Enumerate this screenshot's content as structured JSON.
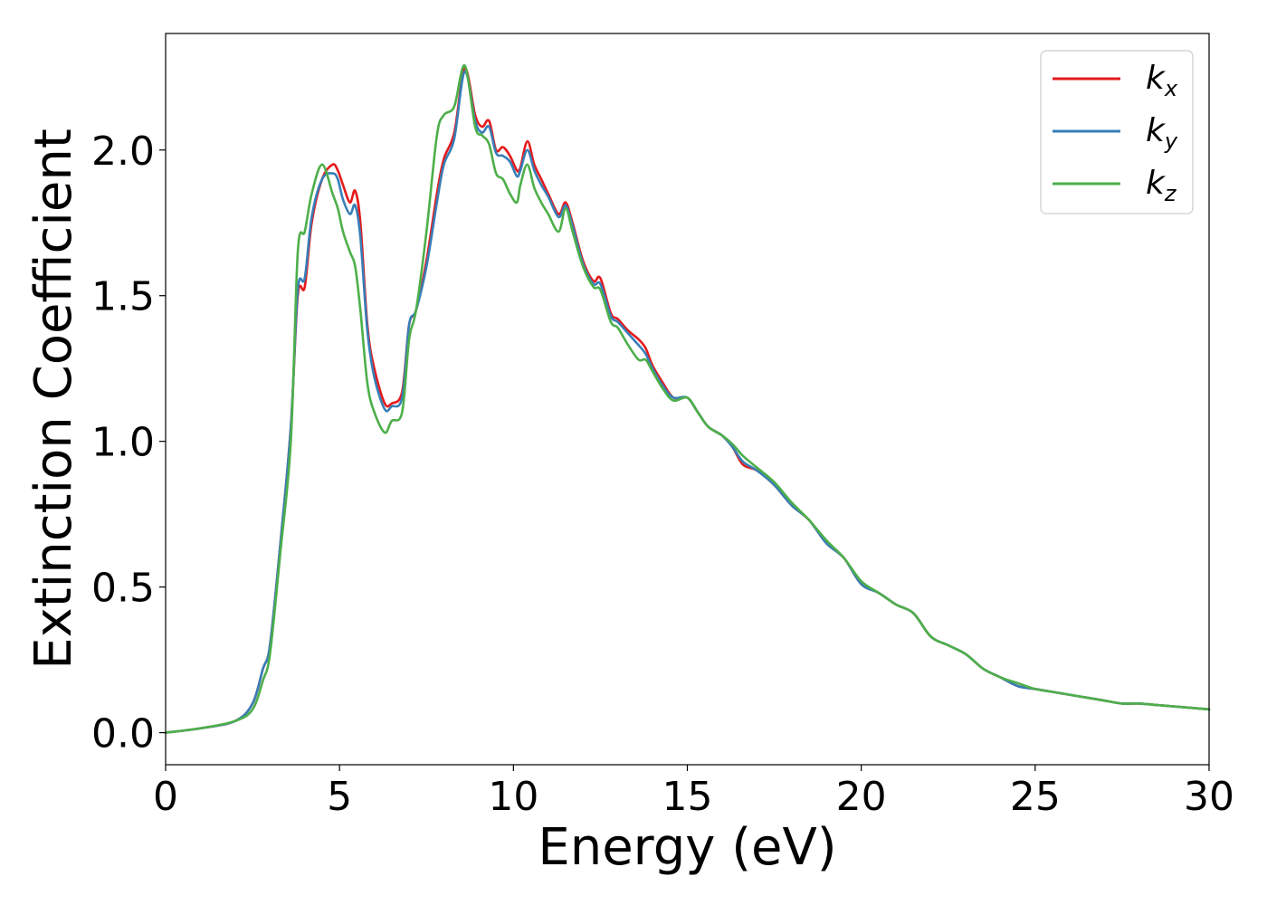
{
  "chart_data": {
    "type": "line",
    "title": "",
    "xlabel": "Energy (eV)",
    "ylabel": "Extinction Coefficient",
    "xlim": [
      0,
      30
    ],
    "ylim": [
      -0.11,
      2.4
    ],
    "xticks": [
      0,
      5,
      10,
      15,
      20,
      25,
      30
    ],
    "xtick_labels": [
      "0",
      "5",
      "10",
      "15",
      "20",
      "25",
      "30"
    ],
    "yticks": [
      0.0,
      0.5,
      1.0,
      1.5,
      2.0
    ],
    "ytick_labels": [
      "0.0",
      "0.5",
      "1.0",
      "1.5",
      "2.0"
    ],
    "grid": false,
    "legend_position": "top-right",
    "series": [
      {
        "name": "k",
        "subscript": "x",
        "color": "#e41a1c",
        "x": [
          0,
          1,
          2,
          2.5,
          2.8,
          3.0,
          3.3,
          3.6,
          3.8,
          4.0,
          4.2,
          4.5,
          4.8,
          4.95,
          5.1,
          5.3,
          5.45,
          5.6,
          5.8,
          6.0,
          6.3,
          6.5,
          6.8,
          7.0,
          7.2,
          7.5,
          7.8,
          8.0,
          8.3,
          8.6,
          8.9,
          9.1,
          9.3,
          9.5,
          9.7,
          9.9,
          10.1,
          10.2,
          10.4,
          10.6,
          10.8,
          11.0,
          11.3,
          11.5,
          11.7,
          12.0,
          12.3,
          12.5,
          12.8,
          13.0,
          13.3,
          13.6,
          13.8,
          14.0,
          14.3,
          14.6,
          15.0,
          15.3,
          15.6,
          16.0,
          16.3,
          16.6,
          17.0,
          17.5,
          18.0,
          18.5,
          19.0,
          19.5,
          20.0,
          20.5,
          21.0,
          21.5,
          22.0,
          22.5,
          23.0,
          23.5,
          24.0,
          24.5,
          25.0,
          25.5,
          26.0,
          26.5,
          27.0,
          27.5,
          28.0,
          28.5,
          29.0,
          29.5,
          30.0
        ],
        "values": [
          0.0,
          0.015,
          0.04,
          0.1,
          0.22,
          0.3,
          0.65,
          1.05,
          1.5,
          1.53,
          1.75,
          1.9,
          1.95,
          1.93,
          1.88,
          1.82,
          1.86,
          1.75,
          1.4,
          1.25,
          1.13,
          1.13,
          1.17,
          1.4,
          1.45,
          1.62,
          1.85,
          1.97,
          2.06,
          2.28,
          2.12,
          2.08,
          2.1,
          2.0,
          2.01,
          1.98,
          1.93,
          1.94,
          2.03,
          1.95,
          1.9,
          1.85,
          1.78,
          1.82,
          1.75,
          1.62,
          1.55,
          1.56,
          1.44,
          1.42,
          1.38,
          1.35,
          1.32,
          1.26,
          1.2,
          1.15,
          1.15,
          1.1,
          1.05,
          1.02,
          0.98,
          0.92,
          0.9,
          0.85,
          0.78,
          0.73,
          0.65,
          0.6,
          0.51,
          0.48,
          0.44,
          0.41,
          0.33,
          0.3,
          0.27,
          0.22,
          0.19,
          0.16,
          0.15,
          0.14,
          0.13,
          0.12,
          0.11,
          0.1,
          0.1,
          0.095,
          0.09,
          0.085,
          0.08
        ]
      },
      {
        "name": "k",
        "subscript": "y",
        "color": "#377eb8",
        "x": [
          0,
          1,
          2,
          2.5,
          2.8,
          3.0,
          3.3,
          3.6,
          3.8,
          4.0,
          4.2,
          4.5,
          4.8,
          4.95,
          5.1,
          5.3,
          5.45,
          5.6,
          5.8,
          6.0,
          6.3,
          6.5,
          6.8,
          7.0,
          7.2,
          7.5,
          7.8,
          8.0,
          8.3,
          8.6,
          8.9,
          9.1,
          9.3,
          9.5,
          9.7,
          9.9,
          10.1,
          10.2,
          10.4,
          10.6,
          10.8,
          11.0,
          11.3,
          11.5,
          11.7,
          12.0,
          12.3,
          12.5,
          12.8,
          13.0,
          13.3,
          13.6,
          13.8,
          14.0,
          14.3,
          14.6,
          15.0,
          15.3,
          15.6,
          16.0,
          16.3,
          16.6,
          17.0,
          17.5,
          18.0,
          18.5,
          19.0,
          19.5,
          20.0,
          20.5,
          21.0,
          21.5,
          22.0,
          22.5,
          23.0,
          23.5,
          24.0,
          24.5,
          25.0,
          25.5,
          26.0,
          26.5,
          27.0,
          27.5,
          28.0,
          28.5,
          29.0,
          29.5,
          30.0
        ],
        "values": [
          0.0,
          0.015,
          0.04,
          0.1,
          0.22,
          0.3,
          0.65,
          1.05,
          1.52,
          1.56,
          1.77,
          1.9,
          1.92,
          1.9,
          1.83,
          1.78,
          1.81,
          1.7,
          1.38,
          1.22,
          1.11,
          1.12,
          1.15,
          1.4,
          1.45,
          1.6,
          1.82,
          1.95,
          2.04,
          2.27,
          2.1,
          2.06,
          2.08,
          1.99,
          1.98,
          1.96,
          1.91,
          1.93,
          2.0,
          1.93,
          1.88,
          1.84,
          1.77,
          1.81,
          1.74,
          1.61,
          1.54,
          1.54,
          1.43,
          1.41,
          1.37,
          1.33,
          1.3,
          1.25,
          1.19,
          1.15,
          1.15,
          1.1,
          1.05,
          1.02,
          0.98,
          0.93,
          0.9,
          0.85,
          0.78,
          0.73,
          0.65,
          0.6,
          0.51,
          0.48,
          0.44,
          0.41,
          0.33,
          0.3,
          0.27,
          0.22,
          0.19,
          0.16,
          0.15,
          0.14,
          0.13,
          0.12,
          0.11,
          0.1,
          0.1,
          0.095,
          0.09,
          0.085,
          0.08
        ]
      },
      {
        "name": "k",
        "subscript": "z",
        "color": "#4daf4a",
        "x": [
          0,
          1,
          2,
          2.5,
          2.8,
          3.0,
          3.3,
          3.6,
          3.8,
          4.0,
          4.2,
          4.5,
          4.8,
          4.95,
          5.1,
          5.3,
          5.45,
          5.6,
          5.8,
          6.0,
          6.3,
          6.5,
          6.8,
          7.0,
          7.2,
          7.5,
          7.8,
          8.0,
          8.3,
          8.6,
          8.9,
          9.1,
          9.3,
          9.5,
          9.7,
          9.9,
          10.1,
          10.2,
          10.4,
          10.6,
          10.8,
          11.0,
          11.3,
          11.5,
          11.7,
          12.0,
          12.3,
          12.5,
          12.8,
          13.0,
          13.3,
          13.6,
          13.8,
          14.0,
          14.3,
          14.6,
          15.0,
          15.3,
          15.6,
          16.0,
          16.3,
          16.6,
          17.0,
          17.5,
          18.0,
          18.5,
          19.0,
          19.5,
          20.0,
          20.5,
          21.0,
          21.5,
          22.0,
          22.5,
          23.0,
          23.5,
          24.0,
          24.5,
          25.0,
          25.5,
          26.0,
          26.5,
          27.0,
          27.5,
          28.0,
          28.5,
          29.0,
          29.5,
          30.0
        ],
        "values": [
          0.0,
          0.015,
          0.04,
          0.08,
          0.18,
          0.27,
          0.62,
          1.0,
          1.65,
          1.72,
          1.85,
          1.95,
          1.85,
          1.8,
          1.72,
          1.65,
          1.6,
          1.45,
          1.2,
          1.1,
          1.03,
          1.07,
          1.1,
          1.35,
          1.45,
          1.72,
          2.05,
          2.12,
          2.15,
          2.29,
          2.08,
          2.05,
          2.02,
          1.92,
          1.9,
          1.85,
          1.82,
          1.88,
          1.95,
          1.87,
          1.82,
          1.78,
          1.72,
          1.8,
          1.72,
          1.6,
          1.53,
          1.52,
          1.41,
          1.39,
          1.33,
          1.28,
          1.28,
          1.24,
          1.18,
          1.14,
          1.15,
          1.1,
          1.05,
          1.02,
          0.99,
          0.95,
          0.91,
          0.86,
          0.79,
          0.73,
          0.66,
          0.6,
          0.52,
          0.48,
          0.44,
          0.41,
          0.33,
          0.3,
          0.27,
          0.22,
          0.19,
          0.17,
          0.15,
          0.14,
          0.13,
          0.12,
          0.11,
          0.1,
          0.1,
          0.095,
          0.09,
          0.085,
          0.08
        ]
      }
    ]
  }
}
